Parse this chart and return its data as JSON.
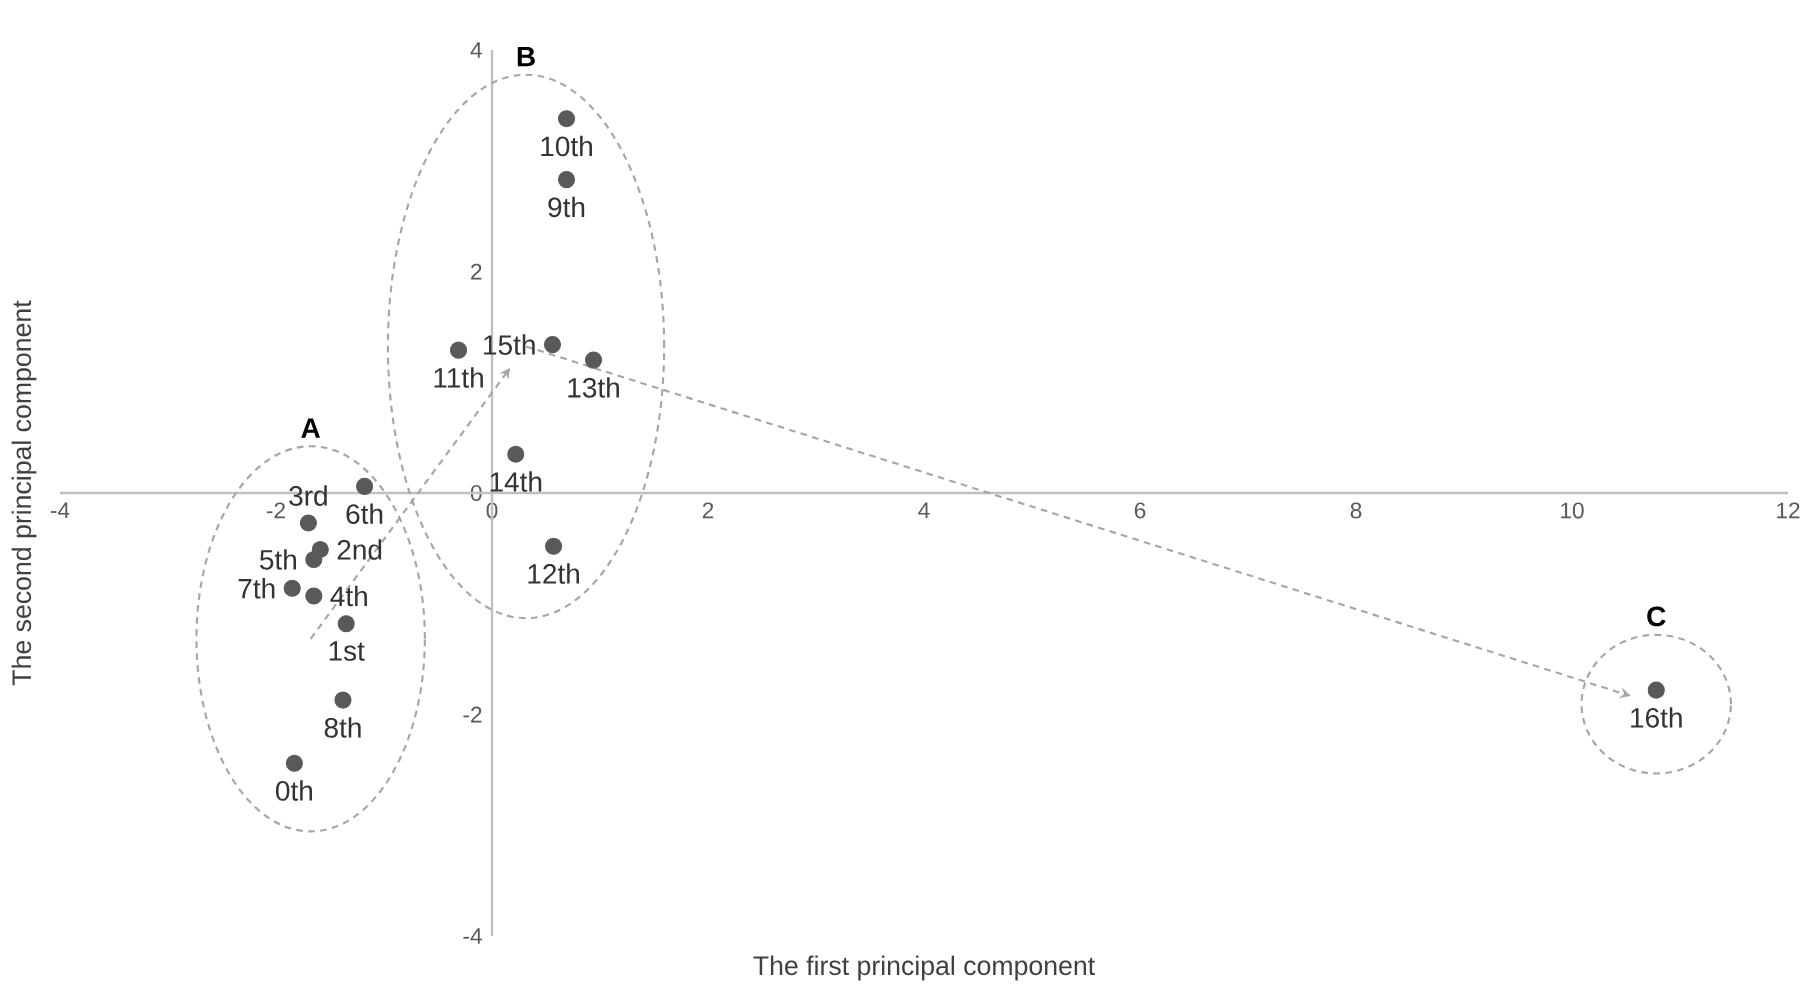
{
  "chart_data": {
    "type": "scatter",
    "xlabel": "The first principal component",
    "ylabel": "The second principal component",
    "xlim": [
      -4,
      12
    ],
    "ylim": [
      -4,
      4
    ],
    "xticks": [
      -4,
      -2,
      0,
      2,
      4,
      6,
      8,
      10,
      12
    ],
    "yticks": [
      -4,
      -2,
      0,
      2,
      4
    ],
    "marker": "circle",
    "annotations": [
      "A",
      "B",
      "C"
    ],
    "series": [
      {
        "name": "0th",
        "color": "#595959",
        "x": [
          -1.83
        ],
        "values": [
          -2.44
        ]
      },
      {
        "name": "1st",
        "color": "#595959",
        "x": [
          -1.35
        ],
        "values": [
          -1.18
        ]
      },
      {
        "name": "2nd",
        "color": "#595959",
        "x": [
          -1.59
        ],
        "values": [
          -0.51
        ]
      },
      {
        "name": "3rd",
        "color": "#595959",
        "x": [
          -1.7
        ],
        "values": [
          -0.27
        ]
      },
      {
        "name": "4th",
        "color": "#595959",
        "x": [
          -1.65
        ],
        "values": [
          -0.93
        ]
      },
      {
        "name": "5th",
        "color": "#595959",
        "x": [
          -1.65
        ],
        "values": [
          -0.6
        ]
      },
      {
        "name": "6th",
        "color": "#595959",
        "x": [
          -1.18
        ],
        "values": [
          0.06
        ]
      },
      {
        "name": "7th",
        "color": "#595959",
        "x": [
          -1.85
        ],
        "values": [
          -0.86
        ]
      },
      {
        "name": "8th",
        "color": "#595959",
        "x": [
          -1.38
        ],
        "values": [
          -1.87
        ]
      },
      {
        "name": "9th",
        "color": "#595959",
        "x": [
          0.69
        ],
        "values": [
          2.83
        ]
      },
      {
        "name": "10th",
        "color": "#595959",
        "x": [
          0.69
        ],
        "values": [
          3.38
        ]
      },
      {
        "name": "11th",
        "color": "#595959",
        "x": [
          -0.31
        ],
        "values": [
          1.29
        ]
      },
      {
        "name": "12th",
        "color": "#595959",
        "x": [
          0.57
        ],
        "values": [
          -0.48
        ]
      },
      {
        "name": "13th",
        "color": "#595959",
        "x": [
          0.94
        ],
        "values": [
          1.2
        ]
      },
      {
        "name": "14th",
        "color": "#595959",
        "x": [
          0.22
        ],
        "values": [
          0.35
        ]
      },
      {
        "name": "15th",
        "color": "#595959",
        "x": [
          0.56
        ],
        "values": [
          1.34
        ]
      },
      {
        "name": "16th",
        "color": "#595959",
        "x": [
          10.78
        ],
        "values": [
          -1.78
        ]
      }
    ]
  }
}
